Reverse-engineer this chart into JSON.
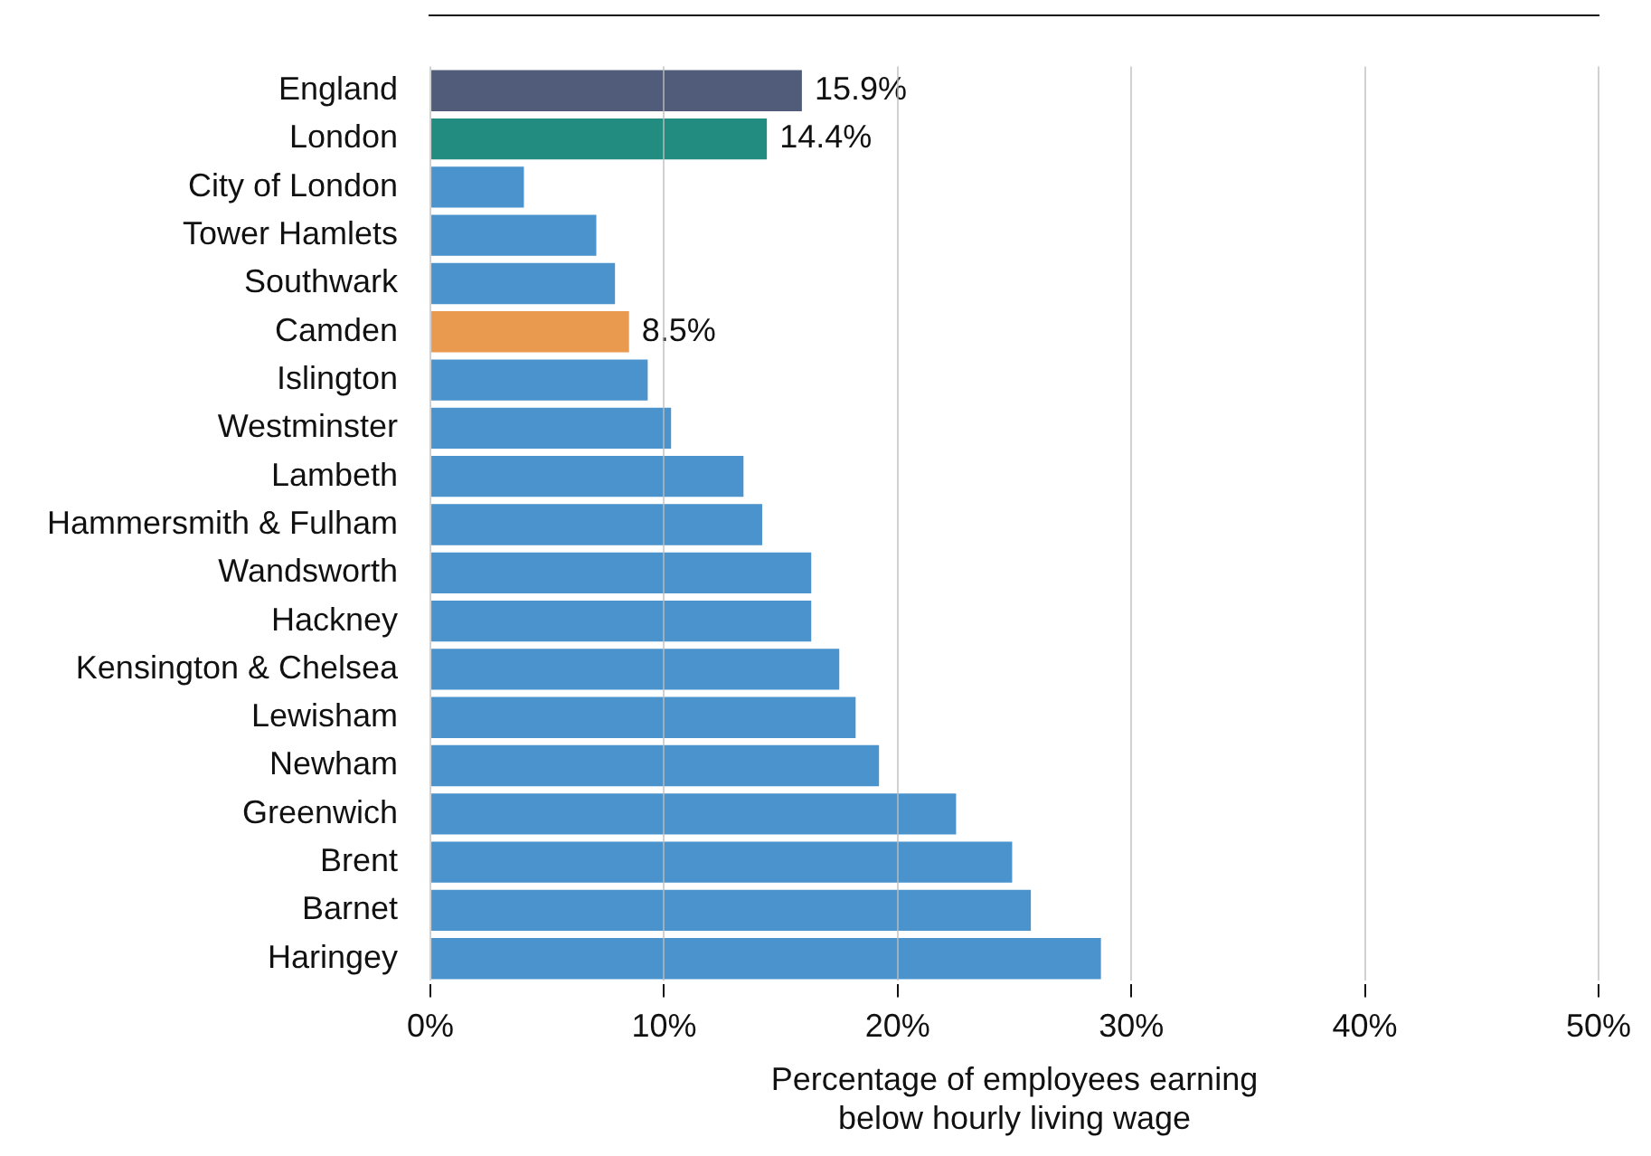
{
  "chart_data": {
    "type": "bar",
    "orientation": "horizontal",
    "xlabel": "Percentage of employees earning\nbelow hourly living wage",
    "categories": [
      "England",
      "London",
      "City of London",
      "Tower Hamlets",
      "Southwark",
      "Camden",
      "Islington",
      "Westminster",
      "Lambeth",
      "Hammersmith & Fulham",
      "Wandsworth",
      "Hackney",
      "Kensington & Chelsea",
      "Lewisham",
      "Newham",
      "Greenwich",
      "Brent",
      "Barnet",
      "Haringey"
    ],
    "values": [
      15.9,
      14.4,
      4.0,
      7.1,
      7.9,
      8.5,
      9.3,
      10.3,
      13.4,
      14.2,
      16.3,
      16.3,
      17.5,
      18.2,
      19.2,
      22.5,
      24.9,
      25.7,
      28.7
    ],
    "colors": [
      "#515c7b",
      "#238c80",
      "#4a93cd",
      "#4a93cd",
      "#4a93cd",
      "#e99a4f",
      "#4a93cd",
      "#4a93cd",
      "#4a93cd",
      "#4a93cd",
      "#4a93cd",
      "#4a93cd",
      "#4a93cd",
      "#4a93cd",
      "#4a93cd",
      "#4a93cd",
      "#4a93cd",
      "#4a93cd",
      "#4a93cd"
    ],
    "value_labels": [
      "15.9%",
      "14.4%",
      null,
      null,
      null,
      "8.5%",
      null,
      null,
      null,
      null,
      null,
      null,
      null,
      null,
      null,
      null,
      null,
      null,
      null
    ],
    "xlim": [
      0,
      50
    ],
    "xticks": [
      {
        "value": 0,
        "label": "0%"
      },
      {
        "value": 10,
        "label": "10%"
      },
      {
        "value": 20,
        "label": "20%"
      },
      {
        "value": 30,
        "label": "30%"
      },
      {
        "value": 40,
        "label": "40%"
      },
      {
        "value": 50,
        "label": "50%"
      }
    ],
    "grid": "x",
    "legend": false
  }
}
